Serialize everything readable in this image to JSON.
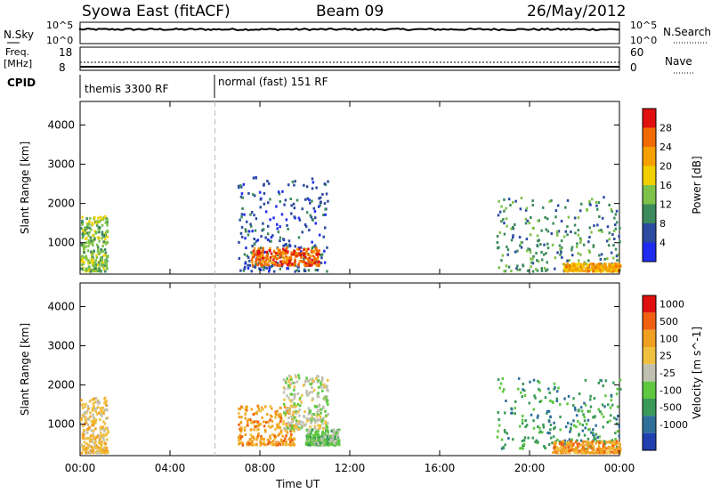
{
  "header": {
    "site": "Syowa East (fitACF)",
    "beam": "Beam 09",
    "date": "26/May/2012"
  },
  "meta_panels": {
    "nsky_label": "N.Sky",
    "freq_label_line1": "Freq.",
    "freq_label_line2": "[MHz]",
    "cpid_label": "CPID",
    "nsearch_label": "N.Search",
    "nave_label": "Nave",
    "nsky_ticks": [
      "10^5",
      "10^0"
    ],
    "nsearch_ticks": [
      "10^5",
      "10^0"
    ],
    "freq_ticks": [
      "18",
      "8"
    ],
    "nave_ticks": [
      "60",
      "0"
    ],
    "cpid_segments": [
      {
        "name": "themis 3300 RF",
        "start_hour": 0,
        "end_hour": 6
      },
      {
        "name": "normal (fast) 151 RF",
        "start_hour": 6,
        "end_hour": 24
      }
    ]
  },
  "chart_data": [
    {
      "type": "heatmap",
      "title": "",
      "variable": "Power",
      "colorbar_label": "Power [dB]",
      "colorbar_ticks": [
        "4",
        "8",
        "12",
        "16",
        "20",
        "24",
        "28"
      ],
      "colors": [
        "#1e2bf0",
        "#2b4aa0",
        "#3d8a5c",
        "#7fc24a",
        "#f0d000",
        "#f5a000",
        "#f06a00",
        "#e01010"
      ],
      "xlabel": "",
      "ylabel": "Slant Range [km]",
      "x_range_hours": [
        0,
        24
      ],
      "y_range_km": [
        200,
        4600
      ],
      "yticks": [
        "1000",
        "2000",
        "3000",
        "4000"
      ],
      "xticks": [
        "00:00",
        "04:00",
        "08:00",
        "12:00",
        "16:00",
        "20:00",
        "00:00"
      ],
      "echo_regions": [
        {
          "t0": 0.0,
          "t1": 1.2,
          "r0": 300,
          "r1": 1700,
          "level": 3
        },
        {
          "t0": 7.0,
          "t1": 11.0,
          "r0": 300,
          "r1": 2700,
          "level": 1
        },
        {
          "t0": 7.6,
          "t1": 10.6,
          "r0": 450,
          "r1": 900,
          "level": 6
        },
        {
          "t0": 18.5,
          "t1": 24.0,
          "r0": 300,
          "r1": 2200,
          "level": 2
        },
        {
          "t0": 21.5,
          "t1": 24.0,
          "r0": 300,
          "r1": 500,
          "level": 5
        }
      ]
    },
    {
      "type": "heatmap",
      "title": "",
      "variable": "Velocity",
      "colorbar_label": "Velocity [m s^-1]",
      "colorbar_ticks": [
        "1000",
        "500",
        "100",
        "25",
        "-25",
        "-100",
        "-500",
        "-1000"
      ],
      "colors": [
        "#2040b0",
        "#2f6f9a",
        "#3a9a5a",
        "#5fc840",
        "#c0c0b0",
        "#f0c040",
        "#f0a020",
        "#f06010",
        "#e01010"
      ],
      "xlabel": "Time UT",
      "ylabel": "Slant Range [km]",
      "x_range_hours": [
        0,
        24
      ],
      "y_range_km": [
        200,
        4600
      ],
      "yticks": [
        "1000",
        "2000",
        "3000",
        "4000"
      ],
      "xticks": [
        "00:00",
        "04:00",
        "08:00",
        "12:00",
        "16:00",
        "20:00",
        "00:00"
      ],
      "echo_regions": [
        {
          "t0": 0.0,
          "t1": 1.2,
          "r0": 300,
          "r1": 1700,
          "level": 5
        },
        {
          "t0": 7.0,
          "t1": 9.5,
          "r0": 500,
          "r1": 1500,
          "level": 6
        },
        {
          "t0": 9.0,
          "t1": 11.0,
          "r0": 900,
          "r1": 2300,
          "level": 4
        },
        {
          "t0": 10.0,
          "t1": 11.5,
          "r0": 500,
          "r1": 900,
          "level": 3
        },
        {
          "t0": 18.5,
          "t1": 24.0,
          "r0": 400,
          "r1": 2200,
          "level": 2
        },
        {
          "t0": 21.0,
          "t1": 24.0,
          "r0": 300,
          "r1": 600,
          "level": 6
        }
      ]
    }
  ]
}
